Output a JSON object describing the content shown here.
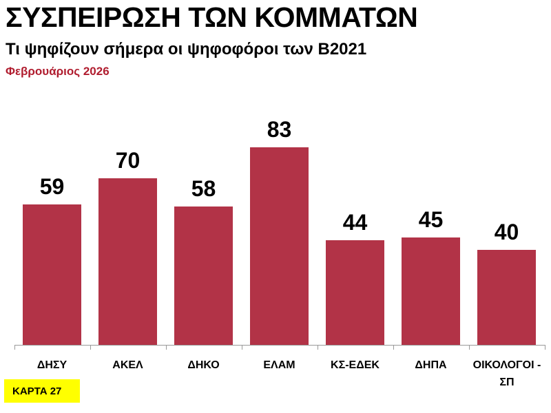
{
  "header": {
    "title": "ΣΥΣΠΕΙΡΩΣΗ ΤΩΝ ΚΟΜΜΑΤΩΝ",
    "subtitle": "Τι ψηφίζουν σήμερα οι ψηφοφόροι των Β2021",
    "date": "Φεβρουάριος 2026"
  },
  "badge": {
    "label": "ΚΑΡΤΑ 27",
    "color": "#ffff00"
  },
  "colors": {
    "bar": "#b23347",
    "date_text": "#b01c2e"
  },
  "chart_data": {
    "type": "bar",
    "title": "ΣΥΣΠΕΙΡΩΣΗ ΤΩΝ ΚΟΜΜΑΤΩΝ",
    "subtitle": "Τι ψηφίζουν σήμερα οι ψηφοφόροι των Β2021 — Φεβρουάριος 2026",
    "categories": [
      "ΔΗΣΥ",
      "ΑΚΕΛ",
      "ΔΗΚΟ",
      "ΕΛΑΜ",
      "ΚΣ-ΕΔΕΚ",
      "ΔΗΠΑ",
      "ΟΙΚΟΛΟΓΟΙ - ΣΠ"
    ],
    "values": [
      59,
      70,
      58,
      83,
      44,
      45,
      40
    ],
    "xlabel": "",
    "ylabel": "",
    "ylim": [
      0,
      100
    ],
    "grid": false,
    "data_labels": true,
    "legend": null
  },
  "labels": {
    "v0": "59",
    "v1": "70",
    "v2": "58",
    "v3": "83",
    "v4": "44",
    "v5": "45",
    "v6": "40",
    "c0": "ΔΗΣΥ",
    "c1": "ΑΚΕΛ",
    "c2": "ΔΗΚΟ",
    "c3": "ΕΛΑΜ",
    "c4": "ΚΣ-ΕΔΕΚ",
    "c5": "ΔΗΠΑ",
    "c6": "ΟΙΚΟΛΟΓΟΙ - ΣΠ"
  }
}
